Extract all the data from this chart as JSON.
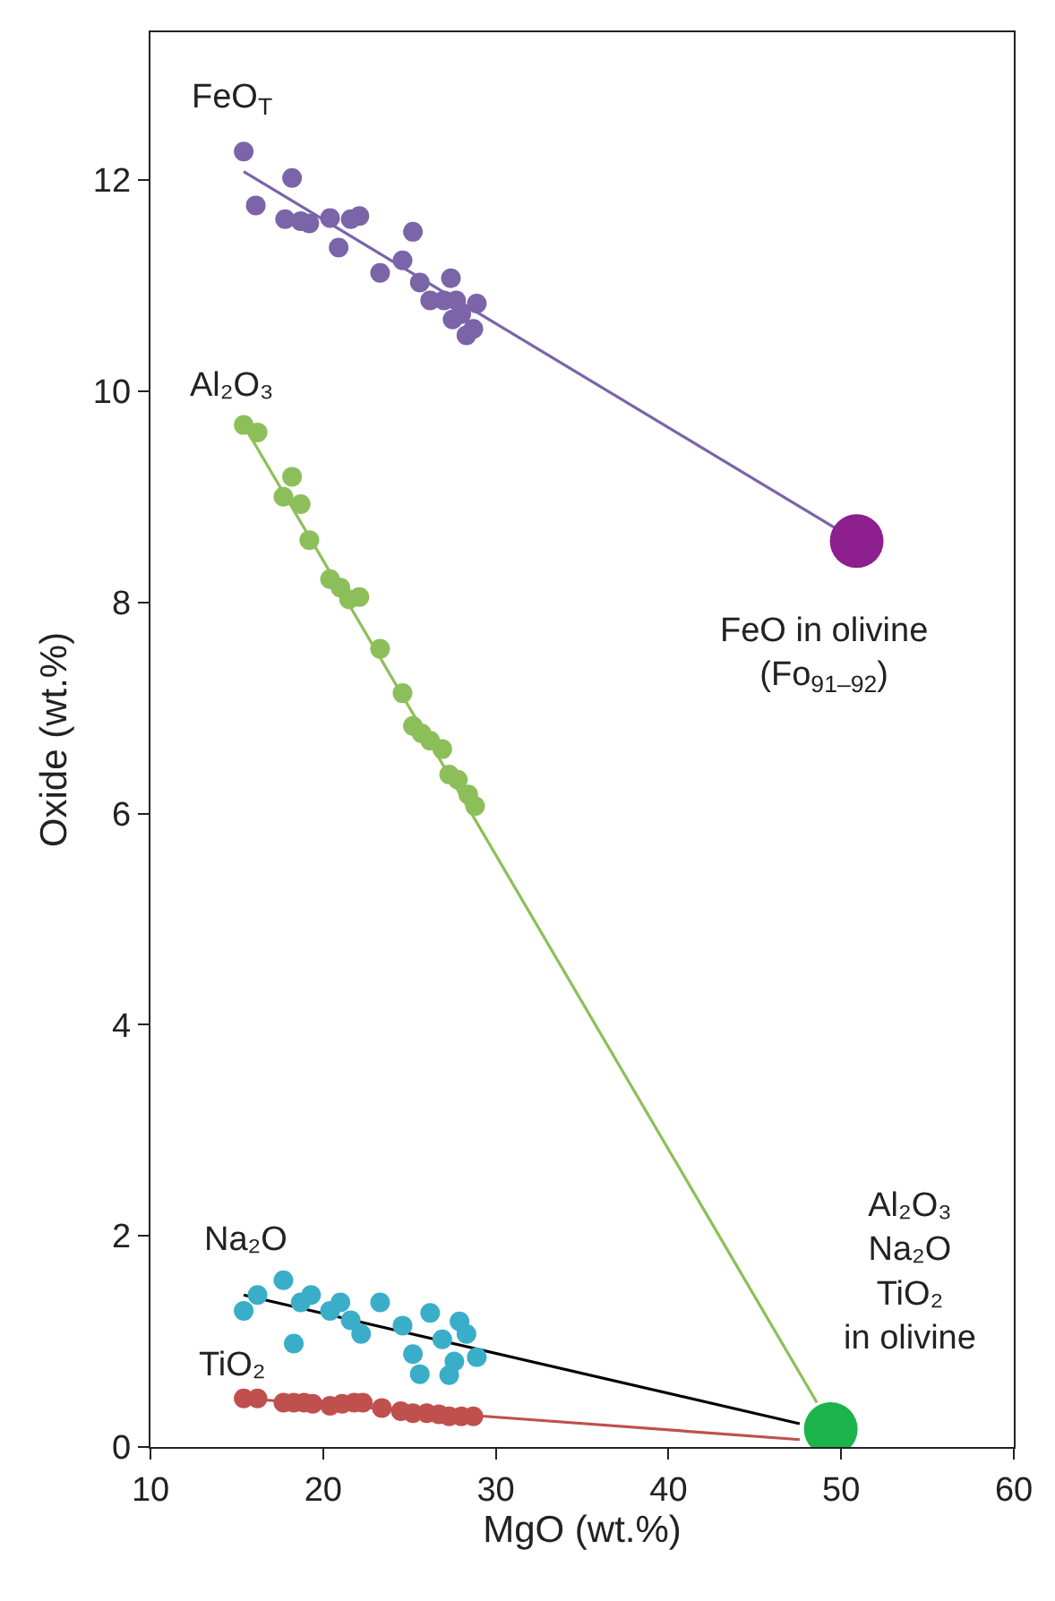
{
  "chart_data": {
    "type": "scatter",
    "xlabel": "MgO (wt.%)",
    "ylabel": "Oxide (wt.%)",
    "xlim": [
      10,
      60
    ],
    "xticks": [
      10,
      20,
      30,
      40,
      50,
      60
    ],
    "ylim": [
      0,
      13.4
    ],
    "yticks": [
      0,
      2,
      4,
      6,
      8,
      10,
      12
    ],
    "marker": "circle",
    "series": [
      {
        "type": "line",
        "marker": "none",
        "color": "#7b64a8",
        "x": [
          15.4,
          49.8
        ],
        "values": [
          12.08,
          8.69
        ]
      },
      {
        "type": "line",
        "marker": "none",
        "color": "#8cbf5a",
        "x": [
          15.4,
          48.6
        ],
        "values": [
          9.68,
          0.42
        ]
      },
      {
        "type": "line",
        "marker": "none",
        "color": "#000000",
        "x": [
          15.4,
          47.6
        ],
        "values": [
          1.44,
          0.22
        ]
      },
      {
        "type": "line",
        "marker": "none",
        "color": "#c0504d",
        "x": [
          15.4,
          47.6
        ],
        "values": [
          0.46,
          0.07
        ]
      },
      {
        "color": "#7b64a8",
        "x": [
          15.4,
          18.2,
          16.1,
          17.8,
          18.7,
          19.2,
          20.4,
          21.6,
          22.1,
          20.9,
          25.2,
          23.3,
          24.6,
          25.6,
          27.4,
          26.2,
          27.0,
          27.7,
          28.9,
          27.5,
          28.0,
          28.3,
          28.7
        ],
        "values": [
          12.27,
          12.02,
          11.76,
          11.63,
          11.61,
          11.59,
          11.64,
          11.63,
          11.66,
          11.36,
          11.51,
          11.12,
          11.24,
          11.03,
          11.07,
          10.86,
          10.86,
          10.86,
          10.83,
          10.68,
          10.73,
          10.53,
          10.59
        ]
      },
      {
        "color": "#8cbf5a",
        "x": [
          15.4,
          16.2,
          18.2,
          17.7,
          18.7,
          19.2,
          20.4,
          21.0,
          21.5,
          22.1,
          23.3,
          24.6,
          25.2,
          25.7,
          26.2,
          26.9,
          27.3,
          27.8,
          28.4,
          28.8
        ],
        "values": [
          9.68,
          9.61,
          9.19,
          9.0,
          8.93,
          8.59,
          8.22,
          8.14,
          8.03,
          8.05,
          7.56,
          7.14,
          6.83,
          6.76,
          6.69,
          6.61,
          6.37,
          6.32,
          6.18,
          6.07
        ]
      },
      {
        "color": "#3aaec8",
        "x": [
          15.4,
          16.2,
          17.7,
          18.3,
          18.7,
          19.3,
          20.4,
          21.0,
          21.6,
          22.2,
          23.3,
          24.6,
          25.2,
          25.6,
          26.2,
          26.9,
          27.3,
          27.6,
          27.9,
          28.3,
          28.9
        ],
        "values": [
          1.29,
          1.44,
          1.58,
          0.98,
          1.37,
          1.44,
          1.29,
          1.37,
          1.2,
          1.07,
          1.37,
          1.15,
          0.88,
          0.69,
          1.27,
          1.02,
          0.68,
          0.81,
          1.19,
          1.07,
          0.85
        ]
      },
      {
        "color": "#c0504d",
        "x": [
          15.4,
          16.2,
          17.7,
          18.3,
          18.9,
          19.4,
          20.4,
          21.1,
          21.8,
          22.3,
          23.4,
          24.5,
          25.2,
          26.0,
          26.7,
          27.3,
          28.0,
          28.7
        ],
        "values": [
          0.46,
          0.46,
          0.42,
          0.42,
          0.42,
          0.41,
          0.39,
          0.41,
          0.42,
          0.42,
          0.37,
          0.34,
          0.32,
          0.32,
          0.31,
          0.29,
          0.29,
          0.29
        ]
      },
      {
        "color": "#8e1f8e",
        "x": [
          50.9
        ],
        "values": [
          8.58
        ]
      },
      {
        "color": "#1db34b",
        "x": [
          49.4
        ],
        "values": [
          0.17
        ]
      }
    ],
    "annotations": [
      "FeO$_{T}$",
      "Al₂O₃",
      "Na₂O",
      "TiO₂",
      "FeO in olivine\n(Fo$_{91–92}$)",
      "Al₂O₃\nNa₂O\nTiO₂\nin olivine"
    ]
  }
}
